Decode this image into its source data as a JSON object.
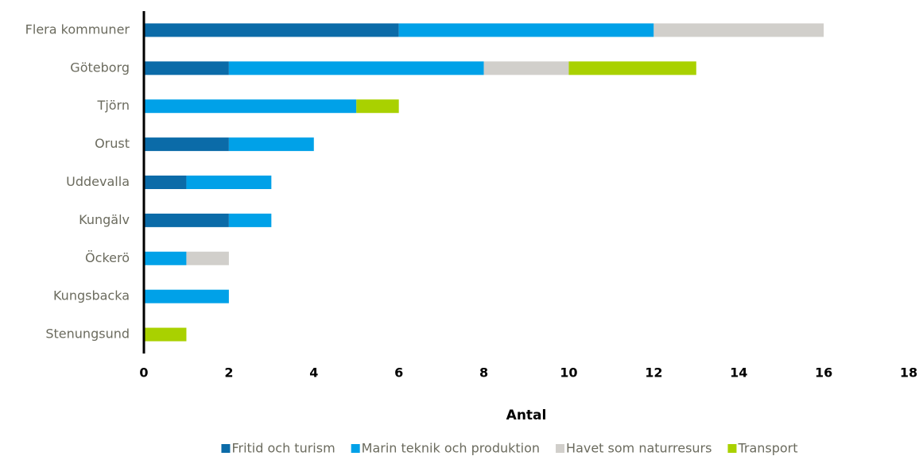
{
  "chart_data": {
    "type": "stacked-barh",
    "categories": [
      "Flera kommuner",
      "Göteborg",
      "Tjörn",
      "Orust",
      "Uddevalla",
      "Kungälv",
      "Öckerö",
      "Kungsbacka",
      "Stenungsund"
    ],
    "series": [
      {
        "name": "Fritid och turism",
        "color": "#0b6ba8",
        "values": [
          6,
          2,
          0,
          2,
          1,
          2,
          0,
          0,
          0
        ]
      },
      {
        "name": "Marin teknik och produktion",
        "color": "#00a1e8",
        "values": [
          6,
          6,
          5,
          2,
          2,
          1,
          1,
          2,
          0
        ]
      },
      {
        "name": "Havet som naturresurs",
        "color": "#d1cfcb",
        "values": [
          4,
          2,
          0,
          0,
          0,
          0,
          1,
          0,
          0
        ]
      },
      {
        "name": "Transport",
        "color": "#a9d100",
        "values": [
          0,
          3,
          1,
          0,
          0,
          0,
          0,
          0,
          1
        ]
      }
    ],
    "xlabel": "Antal",
    "xlim": [
      0,
      18
    ],
    "xticks": [
      0,
      2,
      4,
      6,
      8,
      10,
      12,
      14,
      16,
      18
    ],
    "legend": "bottom"
  }
}
